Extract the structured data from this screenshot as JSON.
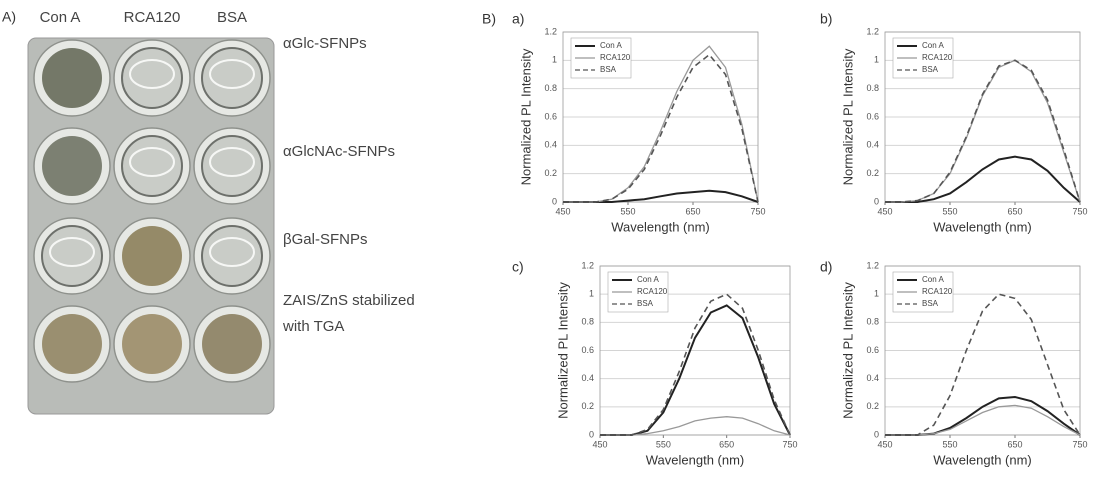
{
  "panel_a": {
    "label": "A)",
    "columns": [
      "Con A",
      "RCA120",
      "BSA"
    ],
    "rows": [
      [
        "αGlc-SFNPs"
      ],
      [
        "αGlcNAc-SFNPs"
      ],
      [
        "βGal-SFNPs"
      ],
      [
        "ZAIS/ZnS stabilized",
        "with TGA"
      ]
    ]
  },
  "panel_b_label": "B)",
  "chart_data": [
    {
      "type": "line",
      "panel": "a)",
      "x_label": "Wavelength (nm)",
      "y_label": "Normalized PL Intensity",
      "x": [
        450,
        475,
        500,
        525,
        550,
        575,
        600,
        625,
        650,
        675,
        700,
        725,
        750
      ],
      "series": [
        {
          "name": "Con A",
          "color": "#222222",
          "style": "solid",
          "values": [
            0,
            0,
            0,
            0,
            0.01,
            0.02,
            0.04,
            0.06,
            0.07,
            0.08,
            0.07,
            0.04,
            0
          ]
        },
        {
          "name": "RCA120",
          "color": "#999999",
          "style": "solid",
          "values": [
            0,
            0,
            0,
            0.02,
            0.1,
            0.25,
            0.5,
            0.78,
            1.0,
            1.1,
            0.95,
            0.55,
            0
          ]
        },
        {
          "name": "BSA",
          "color": "#555555",
          "style": "dashed",
          "values": [
            0,
            0,
            0,
            0.02,
            0.09,
            0.23,
            0.47,
            0.74,
            0.95,
            1.04,
            0.9,
            0.52,
            0
          ]
        }
      ],
      "xlim": [
        450,
        750
      ],
      "xticks": [
        450,
        550,
        650,
        750
      ],
      "ylim": [
        0,
        1.2
      ],
      "yticks": [
        0,
        0.2,
        0.4,
        0.6,
        0.8,
        1,
        1.2
      ],
      "grid": true,
      "legend": "upper left"
    },
    {
      "type": "line",
      "panel": "b)",
      "x_label": "Wavelength (nm)",
      "y_label": "Normalized PL Intensity",
      "x": [
        450,
        475,
        500,
        525,
        550,
        575,
        600,
        625,
        650,
        675,
        700,
        725,
        750
      ],
      "series": [
        {
          "name": "Con A",
          "color": "#222222",
          "style": "solid",
          "values": [
            0,
            0,
            0,
            0.02,
            0.06,
            0.14,
            0.23,
            0.3,
            0.32,
            0.3,
            0.22,
            0.1,
            0
          ]
        },
        {
          "name": "RCA120",
          "color": "#999999",
          "style": "solid",
          "values": [
            0,
            0,
            0.01,
            0.06,
            0.2,
            0.45,
            0.75,
            0.95,
            1.0,
            0.92,
            0.7,
            0.35,
            0
          ]
        },
        {
          "name": "BSA",
          "color": "#555555",
          "style": "dashed",
          "values": [
            0,
            0,
            0.01,
            0.06,
            0.21,
            0.46,
            0.76,
            0.96,
            1.0,
            0.93,
            0.72,
            0.37,
            0
          ]
        }
      ],
      "xlim": [
        450,
        750
      ],
      "xticks": [
        450,
        550,
        650,
        750
      ],
      "ylim": [
        0,
        1.2
      ],
      "yticks": [
        0,
        0.2,
        0.4,
        0.6,
        0.8,
        1,
        1.2
      ],
      "grid": true,
      "legend": "upper left"
    },
    {
      "type": "line",
      "panel": "c)",
      "x_label": "Wavelength (nm)",
      "y_label": "Normalized PL Intensity",
      "x": [
        450,
        475,
        500,
        525,
        550,
        575,
        600,
        625,
        650,
        675,
        700,
        725,
        750
      ],
      "series": [
        {
          "name": "Con A",
          "color": "#222222",
          "style": "solid",
          "values": [
            0,
            0,
            0,
            0.03,
            0.16,
            0.4,
            0.69,
            0.87,
            0.92,
            0.83,
            0.55,
            0.22,
            0
          ]
        },
        {
          "name": "RCA120",
          "color": "#999999",
          "style": "solid",
          "values": [
            0,
            0,
            0,
            0.01,
            0.03,
            0.06,
            0.1,
            0.12,
            0.13,
            0.12,
            0.08,
            0.03,
            0
          ]
        },
        {
          "name": "BSA",
          "color": "#555555",
          "style": "dashed",
          "values": [
            0,
            0,
            0,
            0.04,
            0.18,
            0.45,
            0.76,
            0.95,
            1.0,
            0.9,
            0.6,
            0.25,
            0
          ]
        }
      ],
      "xlim": [
        450,
        750
      ],
      "xticks": [
        450,
        550,
        650,
        750
      ],
      "ylim": [
        0,
        1.2
      ],
      "yticks": [
        0,
        0.2,
        0.4,
        0.6,
        0.8,
        1,
        1.2
      ],
      "grid": true,
      "legend": "upper left"
    },
    {
      "type": "line",
      "panel": "d)",
      "x_label": "Wavelength (nm)",
      "y_label": "Normalized PL Intensity",
      "x": [
        450,
        475,
        500,
        525,
        550,
        575,
        600,
        625,
        650,
        675,
        700,
        725,
        750
      ],
      "series": [
        {
          "name": "Con A",
          "color": "#222222",
          "style": "solid",
          "values": [
            0,
            0,
            0,
            0.01,
            0.05,
            0.12,
            0.2,
            0.26,
            0.27,
            0.24,
            0.17,
            0.08,
            0
          ]
        },
        {
          "name": "RCA120",
          "color": "#999999",
          "style": "solid",
          "values": [
            0,
            0,
            0,
            0.01,
            0.04,
            0.1,
            0.16,
            0.2,
            0.21,
            0.19,
            0.13,
            0.06,
            0
          ]
        },
        {
          "name": "BSA",
          "color": "#555555",
          "style": "dashed",
          "values": [
            0,
            0,
            0,
            0.07,
            0.28,
            0.6,
            0.88,
            1.0,
            0.97,
            0.82,
            0.5,
            0.18,
            0
          ]
        }
      ],
      "xlim": [
        450,
        750
      ],
      "xticks": [
        450,
        550,
        650,
        750
      ],
      "ylim": [
        0,
        1.2
      ],
      "yticks": [
        0,
        0.2,
        0.4,
        0.6,
        0.8,
        1,
        1.2
      ],
      "grid": true,
      "legend": "upper left"
    }
  ]
}
